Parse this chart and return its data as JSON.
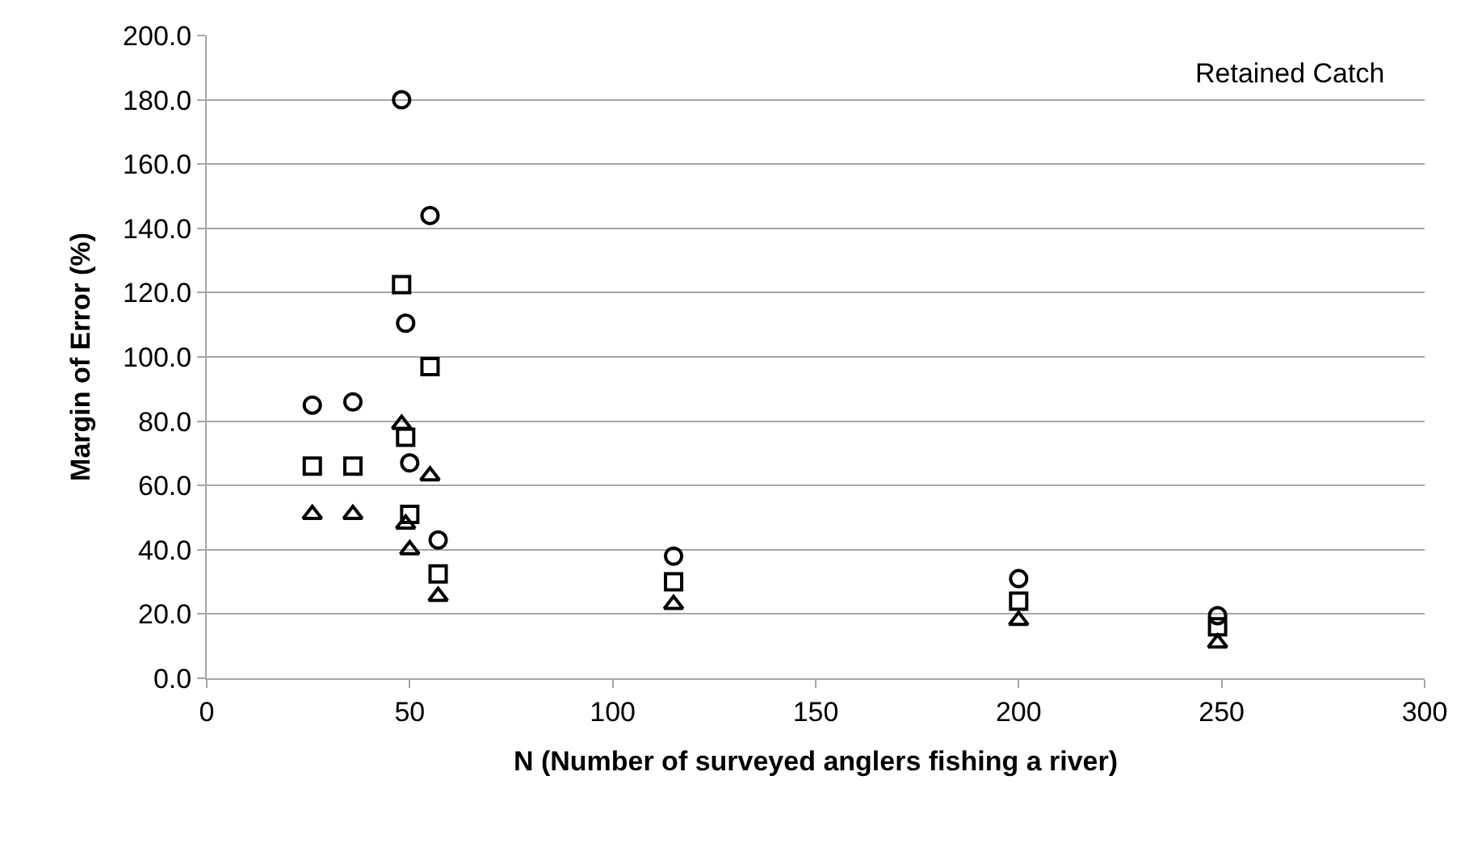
{
  "chart_data": {
    "type": "scatter",
    "xlabel": "N (Number of surveyed anglers fishing a river)",
    "ylabel": "Margin of Error (%)",
    "annotations": [
      "Retained Catch"
    ],
    "x": [
      26,
      36,
      48,
      49,
      50,
      55,
      57,
      115,
      200,
      249
    ],
    "series": [
      {
        "color": "#000000",
        "marker": "circle",
        "values": [
          85,
          86,
          180,
          110.5,
          67,
          144,
          43,
          38,
          31,
          19.5
        ]
      },
      {
        "color": "#000000",
        "marker": "square",
        "values": [
          66,
          66,
          122.5,
          75,
          51,
          97,
          32.5,
          30,
          24,
          16
        ]
      },
      {
        "color": "#000000",
        "marker": "triangle",
        "values": [
          51,
          51,
          79,
          48,
          40,
          63,
          25.5,
          23,
          18,
          11
        ]
      }
    ],
    "xlim": [
      0,
      300
    ],
    "xticks": [
      0,
      50,
      100,
      150,
      200,
      250,
      300
    ],
    "ylim": [
      0,
      200
    ],
    "yticks": [
      {
        "value": 0,
        "label": "0.0"
      },
      {
        "value": 20,
        "label": "20.0"
      },
      {
        "value": 40,
        "label": "40.0"
      },
      {
        "value": 60,
        "label": "60.0"
      },
      {
        "value": 80,
        "label": "80.0"
      },
      {
        "value": 100,
        "label": "100.0"
      },
      {
        "value": 120,
        "label": "120.0"
      },
      {
        "value": 140,
        "label": "140.0"
      },
      {
        "value": 160,
        "label": "160.0"
      },
      {
        "value": 180,
        "label": "180.0"
      },
      {
        "value": 200,
        "label": "200.0"
      }
    ],
    "grid": "y"
  }
}
